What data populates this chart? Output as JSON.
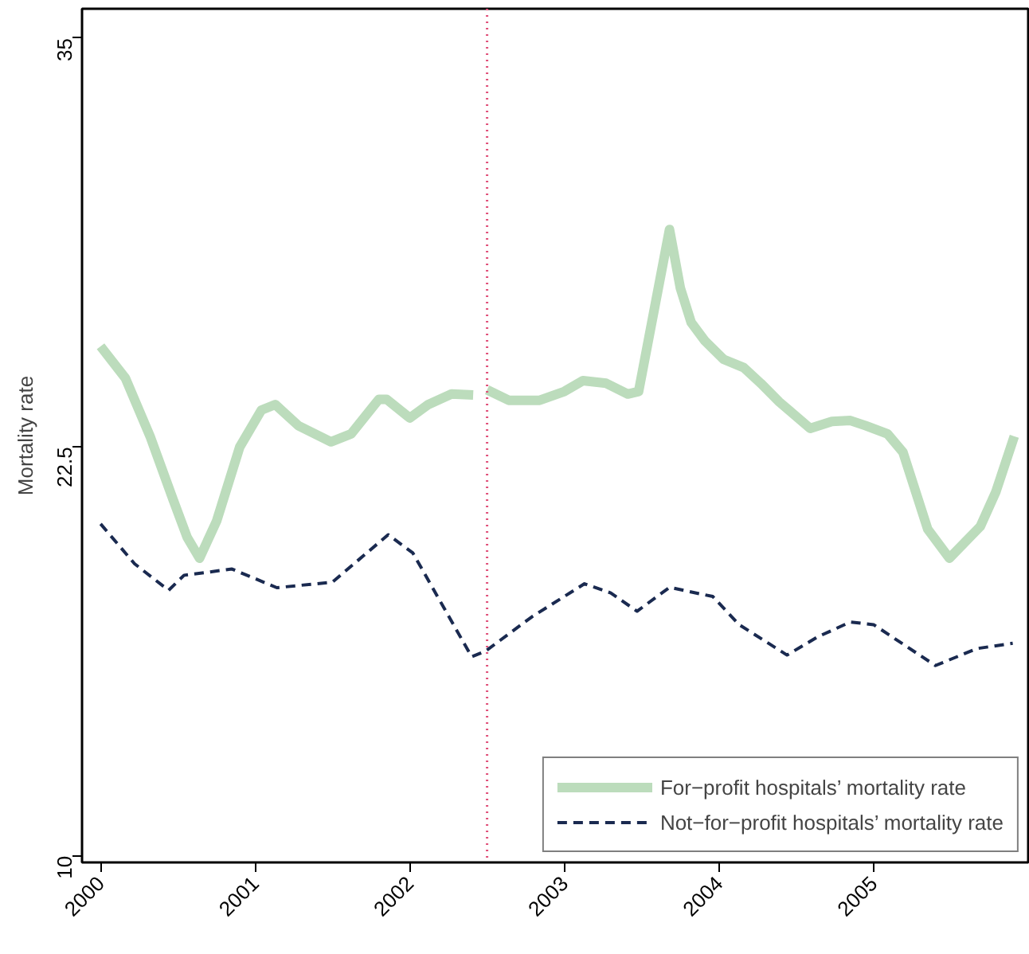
{
  "chart_data": {
    "type": "line",
    "ylabel": "Mortality rate",
    "xlim": [
      1999.88,
      2006.0
    ],
    "xticks": [
      2000,
      2001,
      2002,
      2003,
      2004,
      2005
    ],
    "ylim": [
      9.8,
      35.9
    ],
    "yticks": [
      10,
      22.5,
      35
    ],
    "grid": false,
    "legend": "bottom right",
    "ref_lines": [
      {
        "axis": "x",
        "value": 2002.5,
        "color": "#e0507a",
        "line_style": "dotted"
      }
    ],
    "series": [
      {
        "name": "For−profit hospitals’ mortality rate",
        "color": "#bcdcbc",
        "line_style": "solid",
        "x": [
          2000.0,
          2000.16,
          2000.32,
          2000.47,
          2000.56,
          2000.64,
          2000.75,
          2000.9,
          2001.04,
          2001.13,
          2001.28,
          2001.49,
          2001.62,
          2001.8,
          2001.85,
          2002.0,
          2002.12,
          2002.27,
          2002.41,
          2002.45,
          2002.5,
          2002.64,
          2002.84,
          2003.0,
          2003.12,
          2003.27,
          2003.41,
          2003.48,
          2003.68,
          2003.75,
          2003.82,
          2003.91,
          2004.03,
          2004.16,
          2004.27,
          2004.39,
          2004.59,
          2004.73,
          2004.85,
          2004.95,
          2005.09,
          2005.19,
          2005.35,
          2005.49,
          2005.69,
          2005.79,
          2005.91
        ],
        "values": [
          25.58,
          24.61,
          22.83,
          20.88,
          19.74,
          19.1,
          20.23,
          22.5,
          23.63,
          23.8,
          23.15,
          22.66,
          22.9,
          23.96,
          23.96,
          23.39,
          23.8,
          24.12,
          24.09,
          null,
          24.25,
          23.93,
          23.93,
          24.2,
          24.53,
          24.45,
          24.12,
          24.2,
          29.15,
          27.36,
          26.31,
          25.74,
          25.18,
          24.93,
          24.45,
          23.88,
          23.07,
          23.28,
          23.31,
          23.15,
          22.9,
          22.34,
          19.99,
          19.1,
          20.07,
          21.12,
          22.83
        ]
      },
      {
        "name": "Not−for−profit hospitals’ mortality rate",
        "color": "#1a2a50",
        "line_style": "dashed",
        "x": [
          2000.0,
          2000.22,
          2000.44,
          2000.54,
          2000.85,
          2001.14,
          2001.5,
          2001.86,
          2002.02,
          2002.4,
          2002.49,
          2002.79,
          2003.13,
          2003.3,
          2003.47,
          2003.68,
          2003.96,
          2004.13,
          2004.44,
          2004.64,
          2004.85,
          2005.0,
          2005.4,
          2005.67,
          2005.9
        ],
        "values": [
          20.15,
          18.93,
          18.12,
          18.58,
          18.77,
          18.2,
          18.37,
          19.82,
          19.26,
          16.09,
          16.26,
          17.31,
          18.32,
          18.04,
          17.48,
          18.21,
          17.93,
          17.07,
          16.14,
          16.7,
          17.15,
          17.07,
          15.82,
          16.34,
          16.5
        ]
      }
    ]
  }
}
